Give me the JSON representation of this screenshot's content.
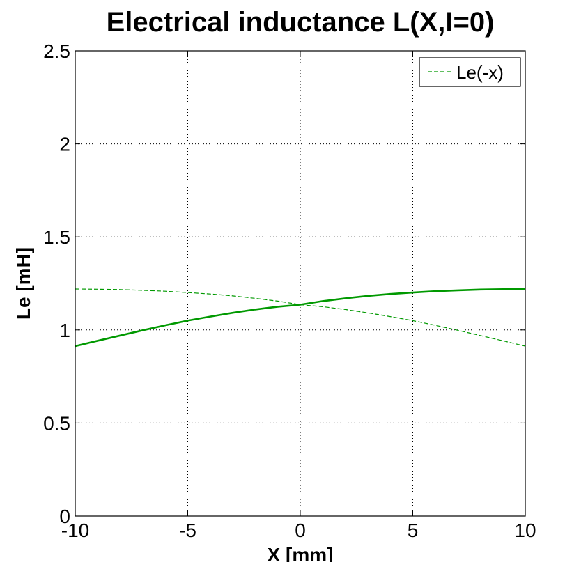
{
  "chart_data": {
    "type": "line",
    "title": "Electrical inductance L(X,I=0)",
    "xlabel": "X [mm]",
    "ylabel": "Le [mH]",
    "xlim": [
      -10,
      10
    ],
    "ylim": [
      0,
      2.5
    ],
    "xticks": [
      -10,
      -5,
      0,
      5,
      10
    ],
    "yticks": [
      0,
      0.5,
      1,
      1.5,
      2,
      2.5
    ],
    "xtick_labels": [
      "-10",
      "-5",
      "0",
      "5",
      "10"
    ],
    "ytick_labels": [
      "0",
      "0.5",
      "1",
      "1.5",
      "2",
      "2.5"
    ],
    "grid": true,
    "legend_position": "top-right",
    "x": [
      -10,
      -9,
      -8,
      -7,
      -6,
      -5,
      -4,
      -3,
      -2,
      -1,
      0,
      1,
      2,
      3,
      4,
      5,
      6,
      7,
      8,
      9,
      10
    ],
    "series": [
      {
        "color": "#009900",
        "line_style": "solid",
        "values": [
          0.913,
          0.942,
          0.97,
          0.998,
          1.025,
          1.05,
          1.072,
          1.092,
          1.11,
          1.125,
          1.136,
          1.155,
          1.17,
          1.183,
          1.193,
          1.201,
          1.208,
          1.213,
          1.217,
          1.219,
          1.22
        ]
      },
      {
        "name": "Le(-x)",
        "color": "#009900",
        "line_style": "dashed",
        "values": [
          1.22,
          1.219,
          1.217,
          1.213,
          1.208,
          1.201,
          1.193,
          1.183,
          1.17,
          1.155,
          1.136,
          1.125,
          1.11,
          1.092,
          1.072,
          1.05,
          1.025,
          0.998,
          0.97,
          0.942,
          0.913
        ]
      }
    ]
  }
}
